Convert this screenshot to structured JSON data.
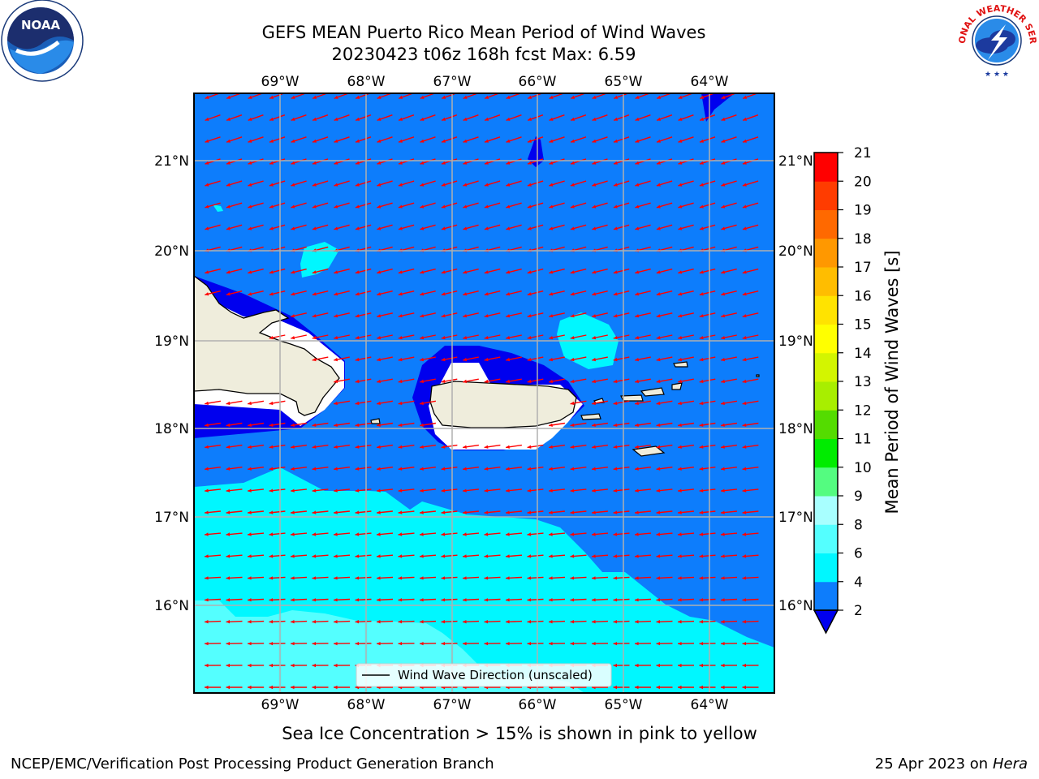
{
  "header": {
    "title_line1": "GEFS MEAN Puerto Rico Mean Period of Wind Waves",
    "title_line2": "20230423 t06z 168h fcst   Max: 6.59"
  },
  "map": {
    "lon_labels": [
      "69°W",
      "68°W",
      "67°W",
      "66°W",
      "65°W",
      "64°W"
    ],
    "lat_labels": [
      "21°N",
      "20°N",
      "19°N",
      "18°N",
      "17°N",
      "16°N"
    ],
    "legend_label": "Wind Wave Direction (unscaled)",
    "land_color": "#efeddc",
    "arrow_color": "#ff0000"
  },
  "colorbar": {
    "label": "Mean Period of Wind Waves [s]",
    "levels": [
      2,
      4,
      6,
      8,
      9,
      10,
      11,
      12,
      13,
      14,
      15,
      16,
      17,
      18,
      19,
      20,
      21
    ],
    "colors": [
      "#0d7dfc",
      "#00f7ff",
      "#54ffff",
      "#a8ffff",
      "#54fc80",
      "#00ec00",
      "#54dc00",
      "#a8ee00",
      "#d3f500",
      "#ffff00",
      "#ffe300",
      "#ffbd00",
      "#ff9800",
      "#ff6900",
      "#ff3c00",
      "#ff0000"
    ],
    "under_color": "#0000ee"
  },
  "note": "Sea Ice Concentration > 15% is shown in pink to yellow",
  "footer": {
    "left": "NCEP/EMC/Verification Post Processing Product Generation Branch",
    "right_date": "25 Apr 2023 on",
    "right_host": "Hera"
  },
  "logos": {
    "noaa_text": "NOAA",
    "nws_text": "NATIONAL WEATHER SERVICE"
  }
}
